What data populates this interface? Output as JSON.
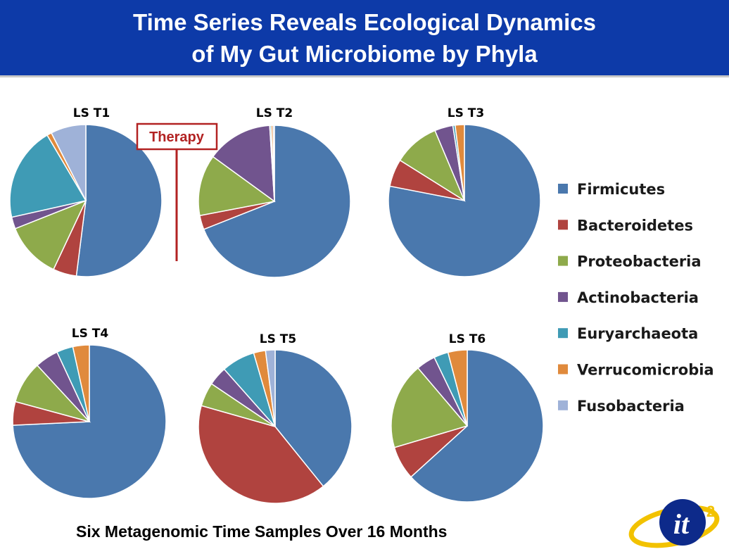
{
  "slide": {
    "title_line1": "Time Series Reveals Ecological Dynamics",
    "title_line2": "of My Gut Microbiome by Phyla",
    "caption": "Six Metagenomic Time Samples Over 16 Months",
    "annotation": "Therapy",
    "logo_text": "it",
    "logo_superscript": "2"
  },
  "colors": {
    "title_bg": "#0d3aa8",
    "annotation": "#b22222",
    "Firmicutes": "#4a78ad",
    "Bacteroidetes": "#b0433f",
    "Proteobacteria": "#8eaa4b",
    "Actinobacteria": "#71548e",
    "Euryarchaeota": "#3f9bb5",
    "Verrucomicrobia": "#e08a3c",
    "Fusobacteria": "#9fb2d8"
  },
  "chart_data": {
    "type": "pie",
    "legend": {
      "placement": "right",
      "entries": [
        "Firmicutes",
        "Bacteroidetes",
        "Proteobacteria",
        "Actinobacteria",
        "Euryarchaeota",
        "Verrucomicrobia",
        "Fusobacteria"
      ]
    },
    "charts": [
      {
        "title": "LS T1",
        "values": [
          52,
          5,
          12,
          2.5,
          20,
          1,
          7.5
        ]
      },
      {
        "title": "LS T2",
        "values": [
          69,
          3,
          13,
          14,
          0.3,
          0.4,
          0.3
        ]
      },
      {
        "title": "LS T3",
        "values": [
          80,
          6,
          10,
          4,
          0.5,
          2,
          0
        ]
      },
      {
        "title": "LS T4",
        "values": [
          75,
          5,
          9,
          5,
          3.5,
          3.5,
          0
        ]
      },
      {
        "title": "LS T5",
        "values": [
          39,
          40,
          5,
          4,
          7,
          2.5,
          2
        ]
      },
      {
        "title": "LS T6",
        "values": [
          62,
          7,
          18,
          4,
          3,
          4,
          0
        ]
      }
    ]
  }
}
